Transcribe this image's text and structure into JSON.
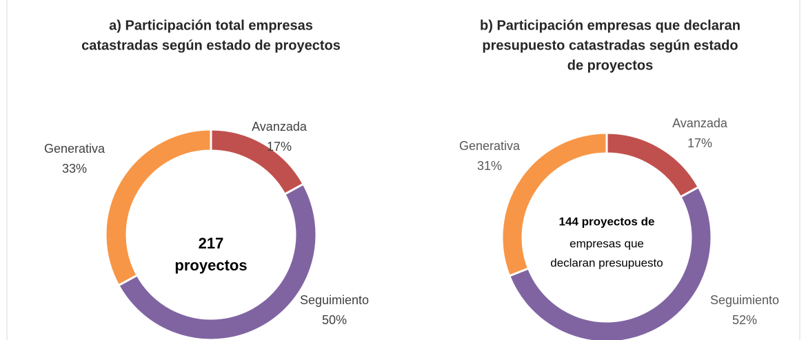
{
  "chart_data": [
    {
      "type": "pie",
      "title": [
        "a) Participación total empresas",
        "catastradas según estado de proyectos"
      ],
      "center_text": [
        {
          "text": "217",
          "bold": true
        },
        {
          "text": "proyectos",
          "bold": true
        }
      ],
      "categories": [
        "Avanzada",
        "Seguimiento",
        "Generativa"
      ],
      "values": [
        17,
        50,
        33
      ],
      "value_labels": [
        "17%",
        "50%",
        "33%"
      ],
      "colors": [
        "#c0504d",
        "#8064a2",
        "#f79646"
      ]
    },
    {
      "type": "pie",
      "title": [
        "b) Participación empresas que declaran",
        "presupuesto catastradas según estado",
        "de proyectos"
      ],
      "center_text": [
        {
          "text": "144  proyectos de",
          "bold": true
        },
        {
          "text": "empresas que",
          "bold": false
        },
        {
          "text": "declaran presupuesto",
          "bold": false
        }
      ],
      "categories": [
        "Avanzada",
        "Seguimiento",
        "Generativa"
      ],
      "values": [
        17,
        52,
        31
      ],
      "value_labels": [
        "17%",
        "52%",
        "31%"
      ],
      "colors": [
        "#c0504d",
        "#8064a2",
        "#f79646"
      ]
    }
  ]
}
